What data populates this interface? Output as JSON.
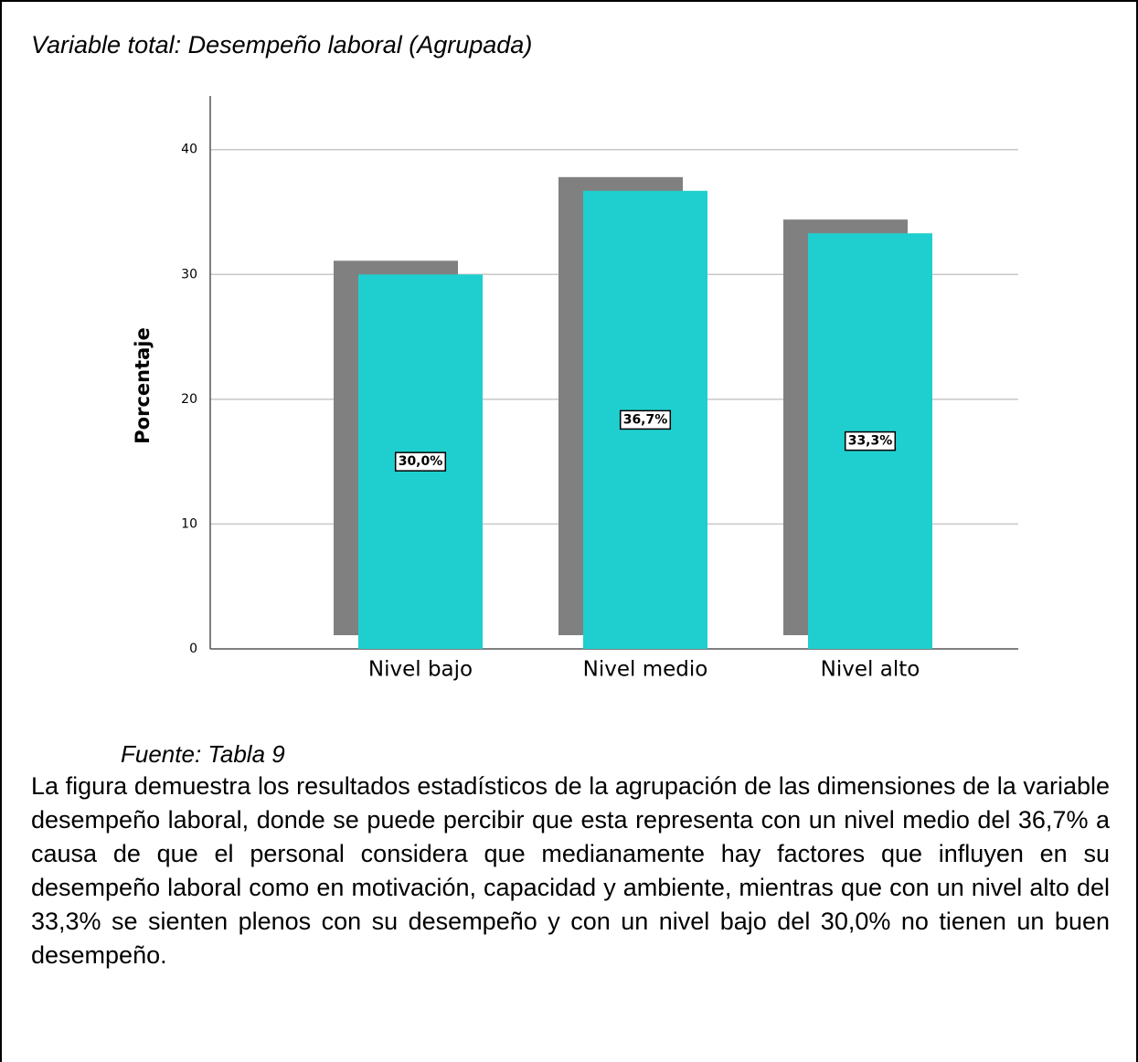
{
  "chart_data": {
    "type": "bar",
    "title": "Variable total: Desempeño laboral (Agrupada)",
    "y_label": "Porcentaje",
    "categories": [
      "Nivel bajo",
      "Nivel medio",
      "Nivel alto"
    ],
    "values": [
      30.0,
      36.7,
      33.3
    ],
    "value_labels": [
      "30,0%",
      "36,7%",
      "33,3%"
    ],
    "color": "#1fcfcf",
    "ylim": [
      0,
      44.3
    ],
    "yticks": [
      0,
      10,
      20,
      30,
      40
    ],
    "grid": true
  },
  "source": "Fuente: Tabla 9",
  "paragraph": "La figura demuestra los resultados estadísticos de la agrupación de las dimensiones de la variable desempeño laboral, donde se puede percibir que esta representa con un nivel medio del 36,7% a causa de que el personal considera que medianamente hay factores que influyen en su desempeño laboral como en motivación, capacidad y ambiente, mientras que con un nivel alto del 33,3% se sienten plenos con su desempeño y con un nivel bajo del 30,0% no tienen un buen desempeño."
}
